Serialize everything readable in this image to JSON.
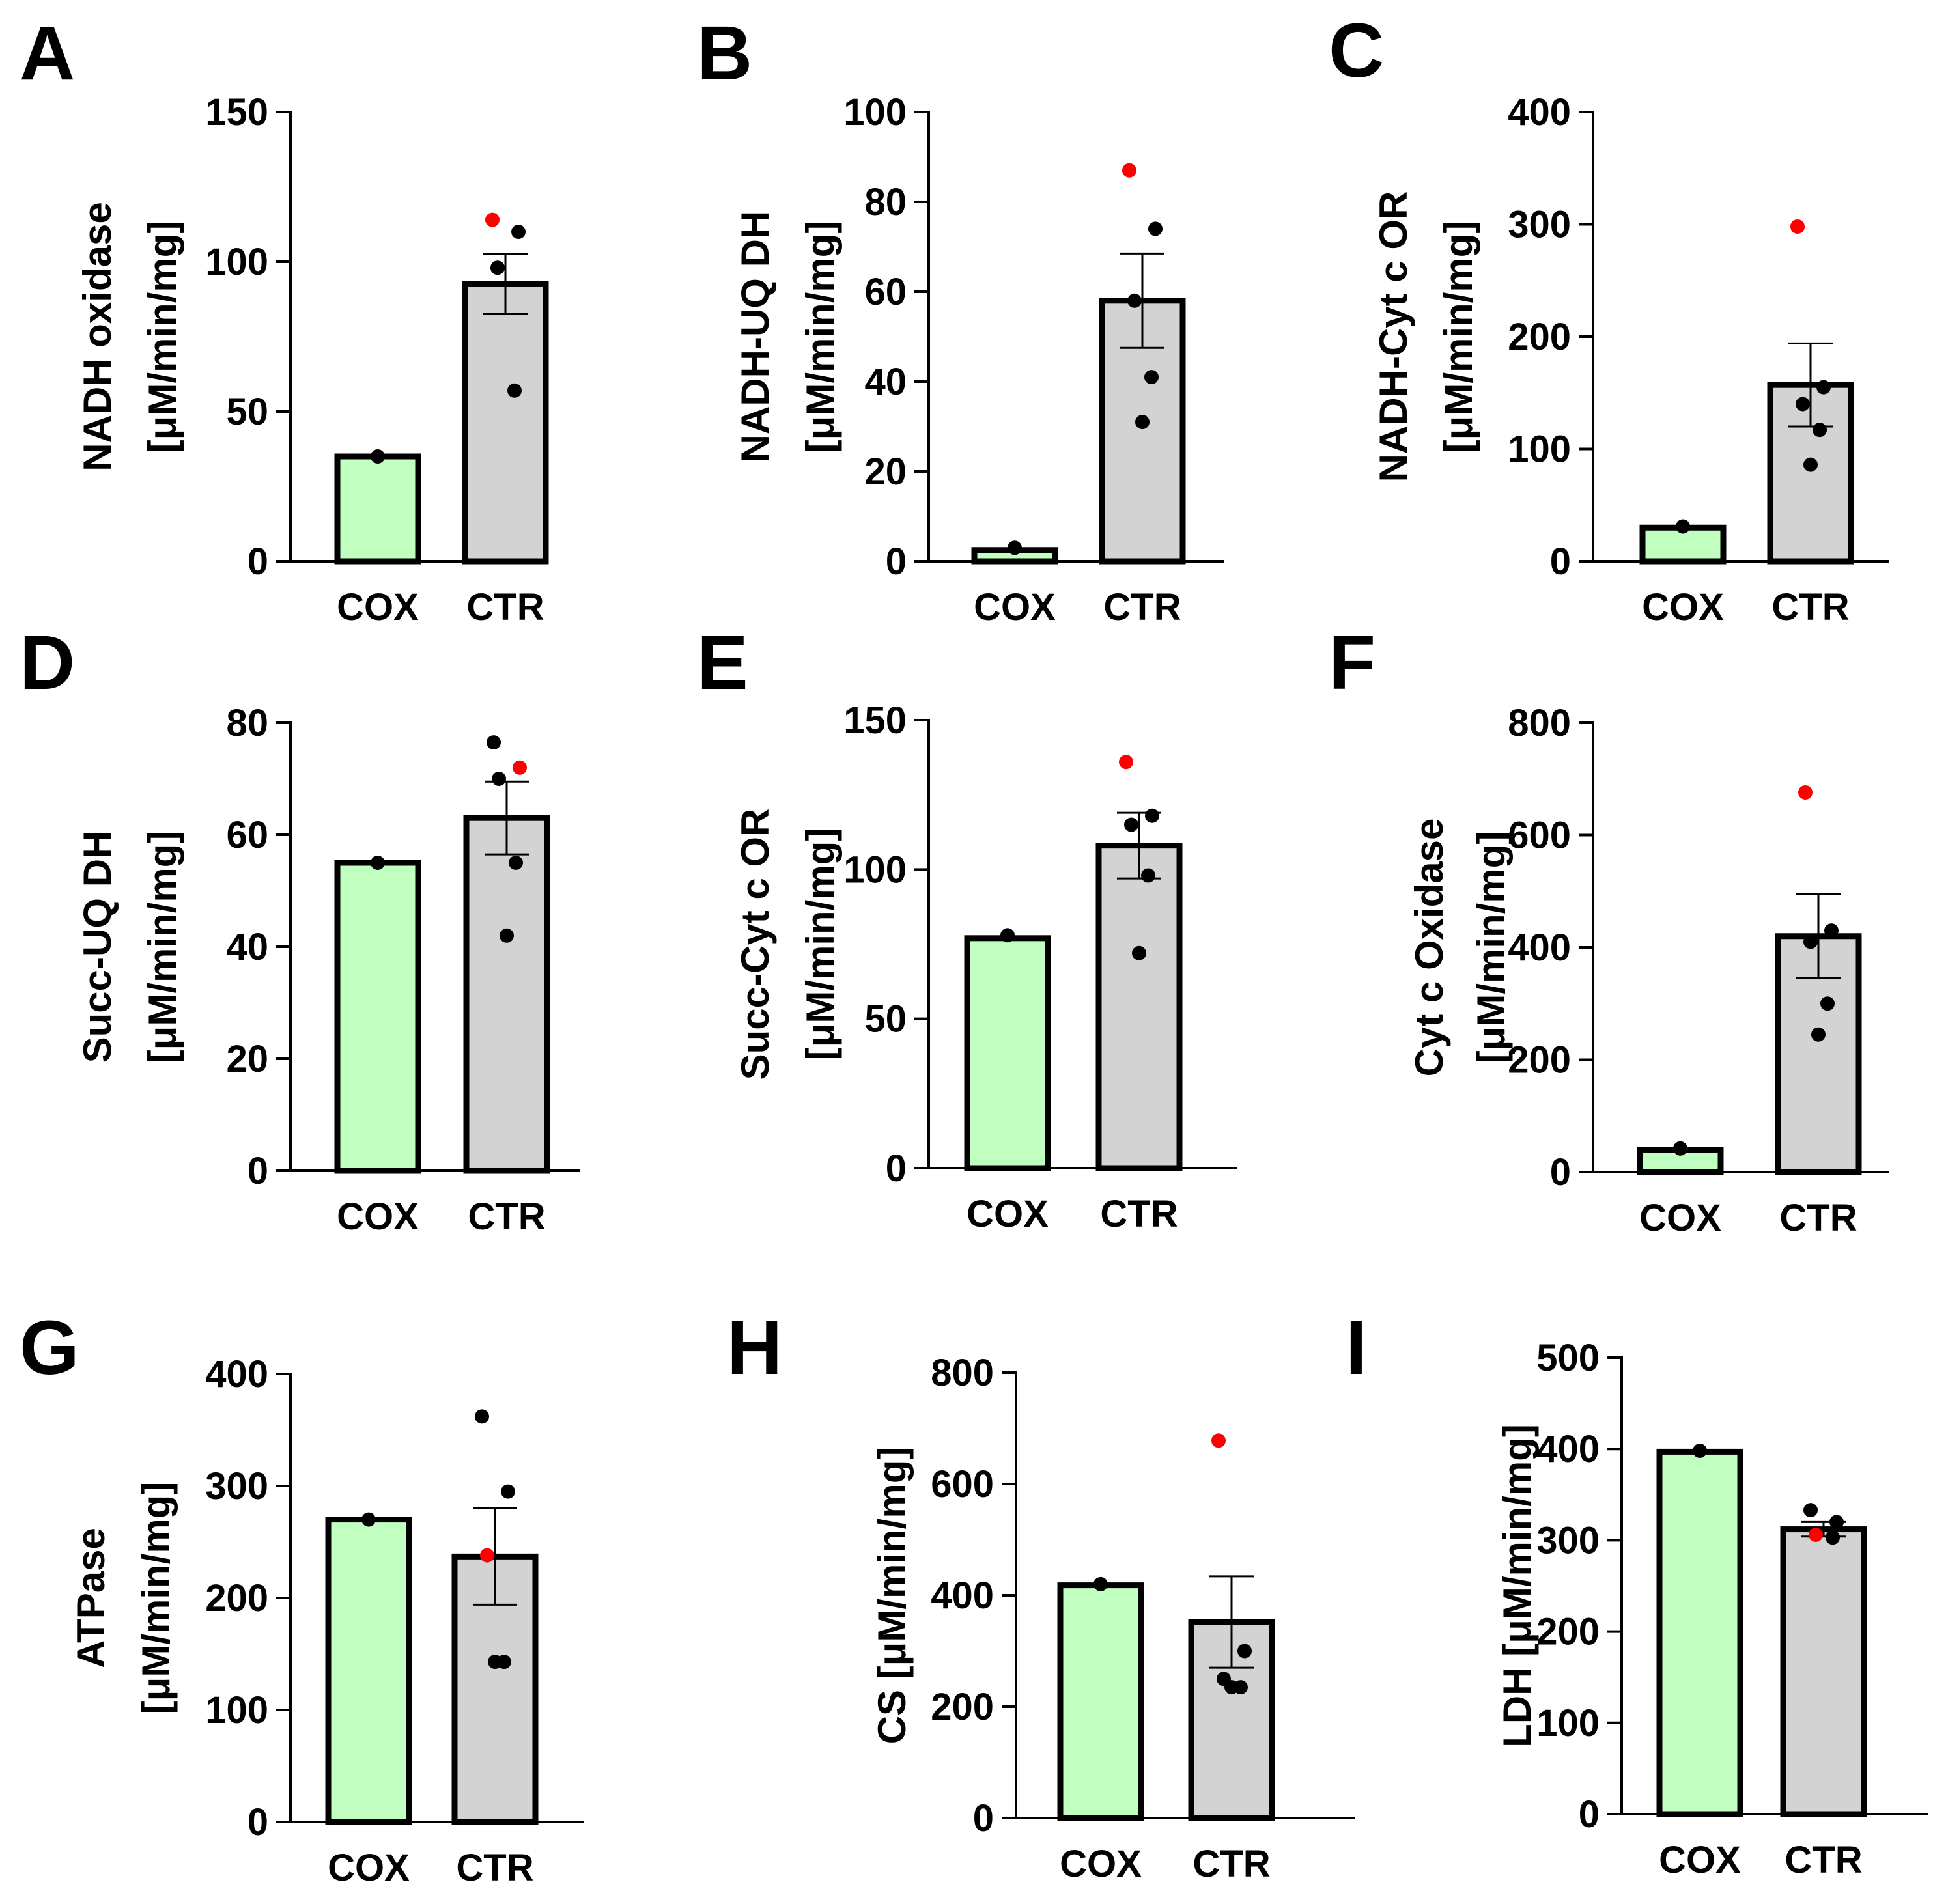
{
  "colors": {
    "cox_bar": "#c1ffc1",
    "ctr_bar": "#d3d3d3",
    "outline": "#000000",
    "point": "#000000",
    "highlight_point": "#ff0000"
  },
  "chart_data": [
    {
      "panel": "A",
      "type": "bar",
      "categories": [
        "COX",
        "CTR"
      ],
      "values": [
        35,
        92.5
      ],
      "error": [
        null,
        10
      ],
      "ylabel_lines": [
        "NADH oxidase",
        "[μM/min/mg]"
      ],
      "ylim": [
        0,
        150
      ],
      "yticks": [
        0,
        50,
        100,
        150
      ],
      "points": {
        "COX": [
          35
        ],
        "CTR": [
          114,
          110,
          98,
          57
        ]
      },
      "highlight_point": {
        "category": "CTR",
        "value": 114
      }
    },
    {
      "panel": "B",
      "type": "bar",
      "categories": [
        "COX",
        "CTR"
      ],
      "values": [
        2.5,
        58
      ],
      "error": [
        null,
        10.5
      ],
      "ylabel_lines": [
        "NADH-UQ DH",
        "[μM/min/mg]"
      ],
      "ylim": [
        0,
        100
      ],
      "yticks": [
        0,
        20,
        40,
        60,
        80,
        100
      ],
      "points": {
        "COX": [
          3
        ],
        "CTR": [
          87,
          74,
          58,
          41,
          31
        ]
      },
      "highlight_point": {
        "category": "CTR",
        "value": 87
      }
    },
    {
      "panel": "C",
      "type": "bar",
      "categories": [
        "COX",
        "CTR"
      ],
      "values": [
        30,
        157
      ],
      "error": [
        null,
        37
      ],
      "ylabel_lines": [
        "NADH-Cyt c OR",
        "[μM/min/mg]"
      ],
      "ylim": [
        0,
        400
      ],
      "yticks": [
        0,
        100,
        200,
        300,
        400
      ],
      "points": {
        "COX": [
          31
        ],
        "CTR": [
          298,
          155,
          140,
          117,
          86
        ]
      },
      "highlight_point": {
        "category": "CTR",
        "value": 298
      }
    },
    {
      "panel": "D",
      "type": "bar",
      "categories": [
        "COX",
        "CTR"
      ],
      "values": [
        55,
        63
      ],
      "error": [
        null,
        6.5
      ],
      "ylabel_lines": [
        "Succ-UQ DH",
        "[μM/min/mg]"
      ],
      "ylim": [
        0,
        80
      ],
      "yticks": [
        0,
        20,
        40,
        60,
        80
      ],
      "points": {
        "COX": [
          55
        ],
        "CTR": [
          76.5,
          72,
          70,
          55,
          42
        ]
      },
      "highlight_point": {
        "category": "CTR",
        "value": 72
      }
    },
    {
      "panel": "E",
      "type": "bar",
      "categories": [
        "COX",
        "CTR"
      ],
      "values": [
        77,
        108
      ],
      "error": [
        null,
        11
      ],
      "ylabel_lines": [
        "Succ-Cyt c OR",
        "[μM/min/mg]"
      ],
      "ylim": [
        0,
        150
      ],
      "yticks": [
        0,
        50,
        100,
        150
      ],
      "points": {
        "COX": [
          78
        ],
        "CTR": [
          136,
          118,
          115,
          98,
          72
        ]
      },
      "highlight_point": {
        "category": "CTR",
        "value": 136
      }
    },
    {
      "panel": "F",
      "type": "bar",
      "categories": [
        "COX",
        "CTR"
      ],
      "values": [
        40,
        420
      ],
      "error": [
        null,
        75
      ],
      "ylabel_lines": [
        "Cyt c Oxidase",
        "[μM/min/mg]"
      ],
      "ylim": [
        0,
        800
      ],
      "yticks": [
        0,
        200,
        400,
        600,
        800
      ],
      "points": {
        "COX": [
          42
        ],
        "CTR": [
          676,
          430,
          410,
          300,
          245
        ]
      },
      "highlight_point": {
        "category": "CTR",
        "value": 676
      }
    },
    {
      "panel": "G",
      "type": "bar",
      "categories": [
        "COX",
        "CTR"
      ],
      "values": [
        270,
        237
      ],
      "error": [
        null,
        43
      ],
      "ylabel_lines": [
        "ATPase",
        "[μM/min/mg]"
      ],
      "ylim": [
        0,
        400
      ],
      "yticks": [
        0,
        100,
        200,
        300,
        400
      ],
      "points": {
        "COX": [
          270
        ],
        "CTR": [
          362,
          295,
          238,
          143,
          143
        ]
      },
      "highlight_point": {
        "category": "CTR",
        "value": 238
      }
    },
    {
      "panel": "H",
      "type": "bar",
      "categories": [
        "COX",
        "CTR"
      ],
      "values": [
        418,
        352
      ],
      "error": [
        null,
        82
      ],
      "ylabel_lines": [
        "CS [μM/min/mg]"
      ],
      "ylim": [
        0,
        800
      ],
      "yticks": [
        0,
        200,
        400,
        600,
        800
      ],
      "points": {
        "COX": [
          420
        ],
        "CTR": [
          678,
          300,
          250,
          235,
          235
        ]
      },
      "highlight_point": {
        "category": "CTR",
        "value": 678
      }
    },
    {
      "panel": "I",
      "type": "bar",
      "categories": [
        "COX",
        "CTR"
      ],
      "values": [
        397,
        312
      ],
      "error": [
        null,
        8
      ],
      "ylabel_lines": [
        "LDH [μM/min/mg]"
      ],
      "ylim": [
        0,
        500
      ],
      "yticks": [
        0,
        100,
        200,
        300,
        400,
        500
      ],
      "points": {
        "COX": [
          398
        ],
        "CTR": [
          333,
          320,
          306,
          303
        ]
      },
      "highlight_point": {
        "category": "CTR",
        "value": 306
      }
    }
  ]
}
